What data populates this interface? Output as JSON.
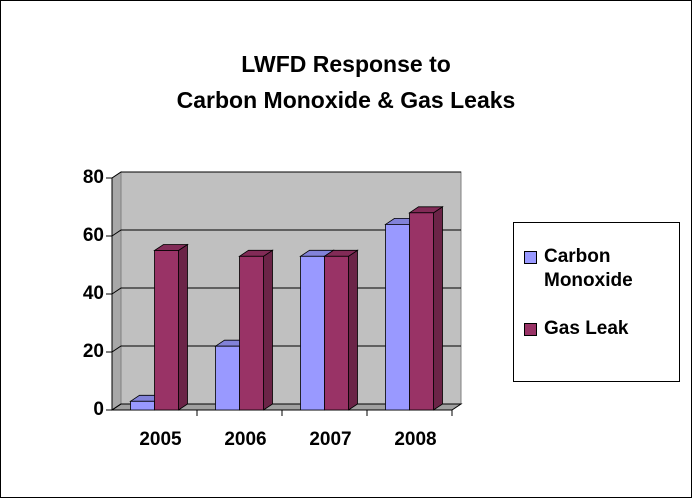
{
  "chart_data": {
    "type": "bar",
    "title": "LWFD Response to\nCarbon Monoxide & Gas Leaks",
    "categories": [
      "2005",
      "2006",
      "2007",
      "2008"
    ],
    "series": [
      {
        "name": "Carbon Monoxide",
        "color": "#9999ff",
        "values": [
          3,
          22,
          53,
          64
        ]
      },
      {
        "name": "Gas Leak",
        "color": "#993366",
        "values": [
          55,
          53,
          53,
          68
        ]
      }
    ],
    "ylim": [
      0,
      80
    ],
    "yticks": [
      0,
      20,
      40,
      60,
      80
    ],
    "grid": true,
    "legend": "right"
  }
}
